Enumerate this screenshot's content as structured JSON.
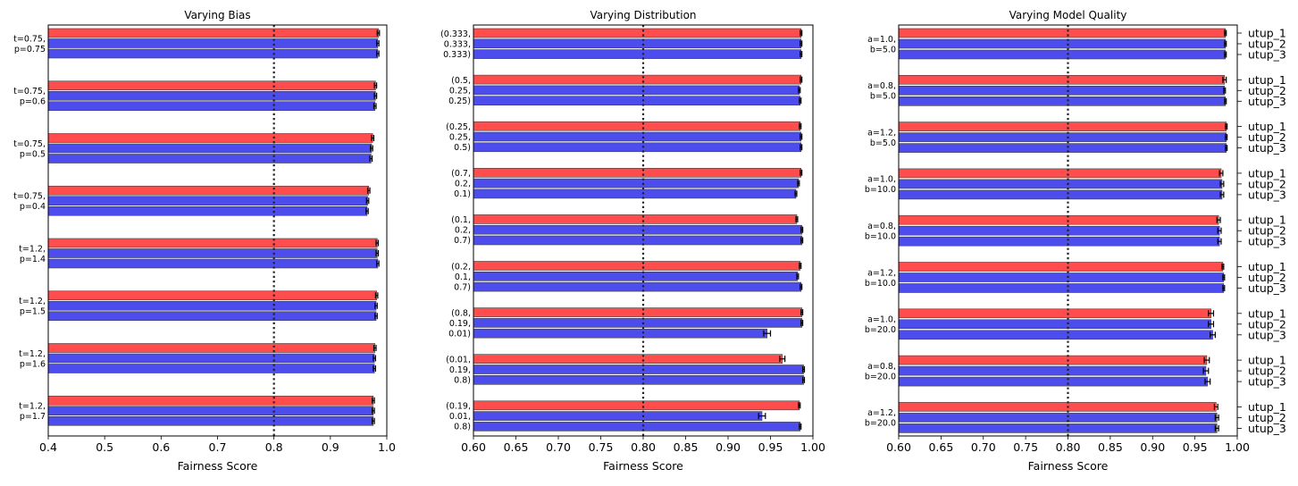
{
  "chart_data": [
    {
      "type": "bar",
      "orientation": "horizontal",
      "title": "Varying Bias",
      "xlabel": "Fairness Score",
      "xlim": [
        0.4,
        1.0
      ],
      "xticks": [
        "0.4",
        "0.5",
        "0.6",
        "0.7",
        "0.8",
        "0.9",
        "1.0"
      ],
      "threshold": 0.8,
      "bar_colors": [
        "#ff4444",
        "#4444ee",
        "#4444ee"
      ],
      "groups": [
        {
          "label": [
            "t=0.75,",
            "p=0.75"
          ],
          "values": [
            0.985,
            0.984,
            0.984
          ],
          "err": [
            0.002,
            0.002,
            0.002
          ]
        },
        {
          "label": [
            "t=0.75,",
            "p=0.6"
          ],
          "values": [
            0.98,
            0.98,
            0.979
          ],
          "err": [
            0.002,
            0.002,
            0.002
          ]
        },
        {
          "label": [
            "t=0.75,",
            "p=0.5"
          ],
          "values": [
            0.975,
            0.973,
            0.972
          ],
          "err": [
            0.002,
            0.002,
            0.002
          ]
        },
        {
          "label": [
            "t=0.75,",
            "p=0.4"
          ],
          "values": [
            0.968,
            0.966,
            0.965
          ],
          "err": [
            0.002,
            0.002,
            0.002
          ]
        },
        {
          "label": [
            "t=1.2,",
            "p=1.4"
          ],
          "values": [
            0.983,
            0.983,
            0.984
          ],
          "err": [
            0.002,
            0.002,
            0.002
          ]
        },
        {
          "label": [
            "t=1.2,",
            "p=1.5"
          ],
          "values": [
            0.982,
            0.981,
            0.981
          ],
          "err": [
            0.002,
            0.002,
            0.002
          ]
        },
        {
          "label": [
            "t=1.2,",
            "p=1.6"
          ],
          "values": [
            0.979,
            0.978,
            0.978
          ],
          "err": [
            0.002,
            0.002,
            0.002
          ]
        },
        {
          "label": [
            "t=1.2,",
            "p=1.7"
          ],
          "values": [
            0.976,
            0.976,
            0.976
          ],
          "err": [
            0.002,
            0.002,
            0.002
          ]
        }
      ]
    },
    {
      "type": "bar",
      "orientation": "horizontal",
      "title": "Varying Distribution",
      "xlabel": "Fairness Score",
      "xlim": [
        0.6,
        1.0
      ],
      "xticks": [
        "0.60",
        "0.65",
        "0.70",
        "0.75",
        "0.80",
        "0.85",
        "0.90",
        "0.95",
        "1.00"
      ],
      "threshold": 0.8,
      "bar_colors": [
        "#ff4444",
        "#4444ee",
        "#4444ee"
      ],
      "groups": [
        {
          "label": [
            "(0.333,",
            "0.333,",
            "0.333)"
          ],
          "values": [
            0.986,
            0.986,
            0.986
          ],
          "err": [
            0.001,
            0.001,
            0.001
          ]
        },
        {
          "label": [
            "(0.5,",
            "0.25,",
            "0.25)"
          ],
          "values": [
            0.986,
            0.984,
            0.985
          ],
          "err": [
            0.001,
            0.001,
            0.001
          ]
        },
        {
          "label": [
            "(0.25,",
            "0.25,",
            "0.5)"
          ],
          "values": [
            0.985,
            0.986,
            0.986
          ],
          "err": [
            0.001,
            0.001,
            0.001
          ]
        },
        {
          "label": [
            "(0.7,",
            "0.2,",
            "0.1)"
          ],
          "values": [
            0.986,
            0.983,
            0.98
          ],
          "err": [
            0.001,
            0.001,
            0.001
          ]
        },
        {
          "label": [
            "(0.1,",
            "0.2,",
            "0.7)"
          ],
          "values": [
            0.981,
            0.987,
            0.987
          ],
          "err": [
            0.001,
            0.001,
            0.001
          ]
        },
        {
          "label": [
            "(0.2,",
            "0.1,",
            "0.7)"
          ],
          "values": [
            0.985,
            0.982,
            0.986
          ],
          "err": [
            0.001,
            0.001,
            0.001
          ]
        },
        {
          "label": [
            "(0.8,",
            "0.19,",
            "0.01)"
          ],
          "values": [
            0.987,
            0.987,
            0.946
          ],
          "err": [
            0.001,
            0.001,
            0.004
          ]
        },
        {
          "label": [
            "(0.01,",
            "0.19,",
            "0.8)"
          ],
          "values": [
            0.964,
            0.989,
            0.989
          ],
          "err": [
            0.003,
            0.001,
            0.001
          ]
        },
        {
          "label": [
            "(0.19,",
            "0.01,",
            "0.8)"
          ],
          "values": [
            0.984,
            0.94,
            0.985
          ],
          "err": [
            0.001,
            0.004,
            0.001
          ]
        }
      ]
    },
    {
      "type": "bar",
      "orientation": "horizontal",
      "title": "Varying Model Quality",
      "xlabel": "Fairness Score",
      "xlim": [
        0.6,
        1.0
      ],
      "xticks": [
        "0.60",
        "0.65",
        "0.70",
        "0.75",
        "0.80",
        "0.85",
        "0.90",
        "0.95",
        "1.00"
      ],
      "threshold": 0.8,
      "bar_colors": [
        "#ff4444",
        "#4444ee",
        "#4444ee"
      ],
      "right_labels": [
        "utup_1",
        "utup_2",
        "utup_3"
      ],
      "groups": [
        {
          "label": [
            "a=1.0,",
            "b=5.0"
          ],
          "values": [
            0.986,
            0.986,
            0.986
          ],
          "err": [
            0.001,
            0.001,
            0.001
          ]
        },
        {
          "label": [
            "a=0.8,",
            "b=5.0"
          ],
          "values": [
            0.985,
            0.985,
            0.986
          ],
          "err": [
            0.002,
            0.001,
            0.001
          ]
        },
        {
          "label": [
            "a=1.2,",
            "b=5.0"
          ],
          "values": [
            0.987,
            0.987,
            0.987
          ],
          "err": [
            0.001,
            0.001,
            0.001
          ]
        },
        {
          "label": [
            "a=1.0,",
            "b=10.0"
          ],
          "values": [
            0.981,
            0.982,
            0.982
          ],
          "err": [
            0.002,
            0.002,
            0.002
          ]
        },
        {
          "label": [
            "a=0.8,",
            "b=10.0"
          ],
          "values": [
            0.978,
            0.979,
            0.979
          ],
          "err": [
            0.002,
            0.002,
            0.002
          ]
        },
        {
          "label": [
            "a=1.2,",
            "b=10.0"
          ],
          "values": [
            0.983,
            0.984,
            0.984
          ],
          "err": [
            0.001,
            0.001,
            0.001
          ]
        },
        {
          "label": [
            "a=1.0,",
            "b=20.0"
          ],
          "values": [
            0.969,
            0.969,
            0.971
          ],
          "err": [
            0.003,
            0.003,
            0.003
          ]
        },
        {
          "label": [
            "a=0.8,",
            "b=20.0"
          ],
          "values": [
            0.964,
            0.963,
            0.965
          ],
          "err": [
            0.003,
            0.003,
            0.003
          ]
        },
        {
          "label": [
            "a=1.2,",
            "b=20.0"
          ],
          "values": [
            0.975,
            0.976,
            0.976
          ],
          "err": [
            0.002,
            0.002,
            0.002
          ]
        }
      ]
    }
  ]
}
